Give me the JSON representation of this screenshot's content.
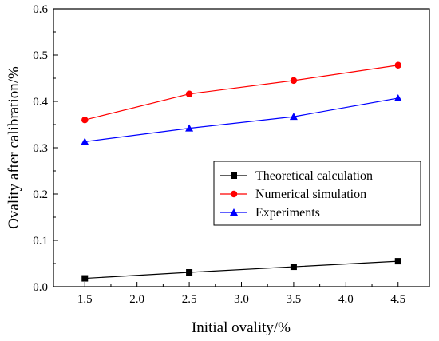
{
  "chart_data": {
    "type": "line",
    "title": "",
    "xlabel": "Initial ovality/%",
    "ylabel": "Ovality after calibration/%",
    "xlim": [
      1.2,
      4.8
    ],
    "ylim": [
      0.0,
      0.6
    ],
    "x": [
      1.5,
      2.5,
      3.5,
      4.5
    ],
    "xticks": [
      1.5,
      2.0,
      2.5,
      3.0,
      3.5,
      4.0,
      4.5
    ],
    "xtick_labels": [
      "1.5",
      "2.0",
      "2.5",
      "3.0",
      "3.5",
      "4.0",
      "4.5"
    ],
    "yticks": [
      0.0,
      0.1,
      0.2,
      0.3,
      0.4,
      0.5,
      0.6
    ],
    "ytick_labels": [
      "0.0",
      "0.1",
      "0.2",
      "0.3",
      "0.4",
      "0.5",
      "0.6"
    ],
    "grid": false,
    "legend_position": "lower-right",
    "series": [
      {
        "name": "Theoretical calculation",
        "values": [
          0.018,
          0.031,
          0.043,
          0.055
        ],
        "color": "#000000",
        "marker": "square"
      },
      {
        "name": "Numerical simulation",
        "values": [
          0.36,
          0.416,
          0.445,
          0.478
        ],
        "color": "#ff0000",
        "marker": "circle"
      },
      {
        "name": "Experiments",
        "values": [
          0.313,
          0.342,
          0.367,
          0.407
        ],
        "color": "#0000ff",
        "marker": "triangle"
      }
    ]
  }
}
